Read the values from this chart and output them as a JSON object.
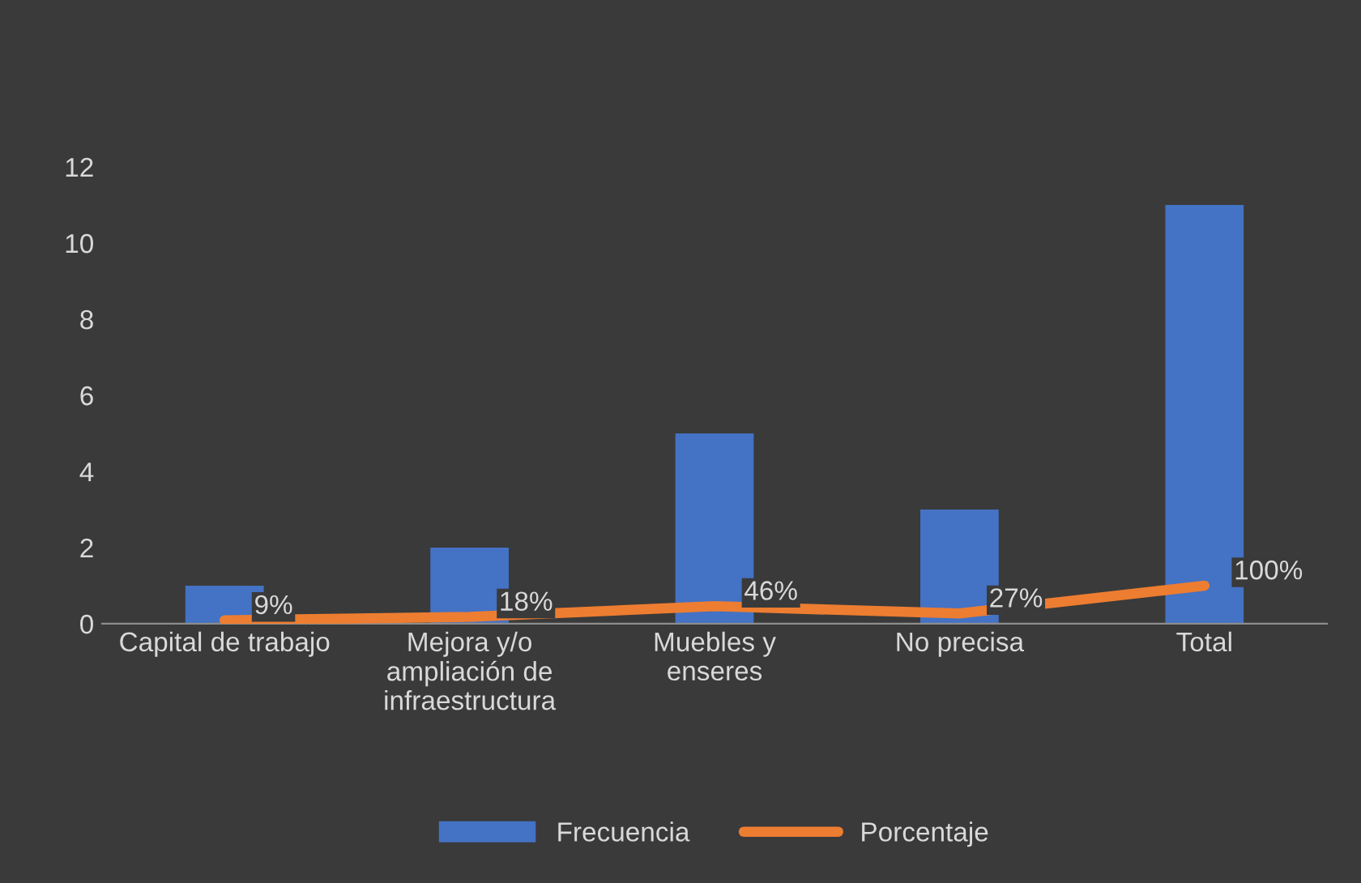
{
  "chart_data": {
    "type": "bar",
    "categories": [
      "Capital de trabajo",
      "Mejora y/o\nampliación de\ninfraestructura",
      "Muebles y\nenseres",
      "No precisa",
      "Total"
    ],
    "series": [
      {
        "name": "Frecuencia",
        "color": "#4472c4",
        "values": [
          1,
          2,
          5,
          3,
          11
        ]
      },
      {
        "name": "Porcentaje",
        "type": "line",
        "color": "#ed7d31",
        "values": [
          0.09,
          0.18,
          0.46,
          0.27,
          1.0
        ],
        "value_labels": [
          "9%",
          "18%",
          "46%",
          "27%",
          "100%"
        ]
      }
    ],
    "ylim": [
      0,
      12
    ],
    "yticks": [
      0,
      2,
      4,
      6,
      8,
      10,
      12
    ],
    "grid": false,
    "legend": "bottom",
    "marker": "none",
    "line_style": "solid"
  }
}
